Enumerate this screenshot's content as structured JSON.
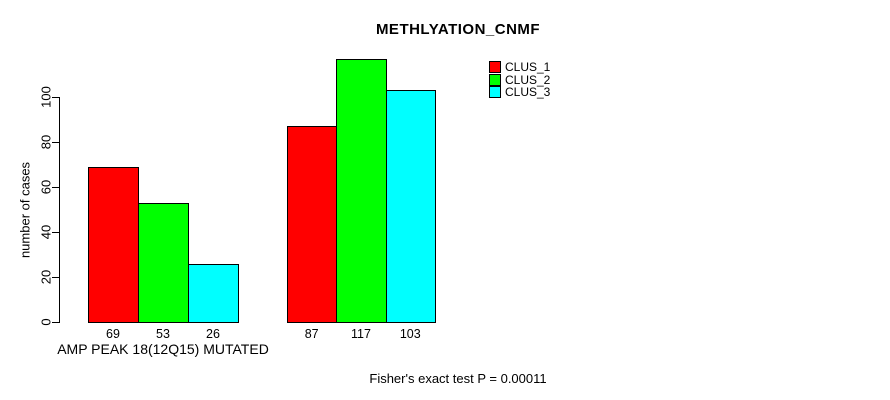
{
  "chart_data": {
    "type": "bar",
    "title": "METHLYATION_CNMF",
    "ylabel": "number of cases",
    "xlabel": "",
    "yticks": [
      0,
      20,
      40,
      60,
      80,
      100
    ],
    "ylim": [
      0,
      117
    ],
    "grid": false,
    "legend_position": "top-right",
    "series": [
      {
        "name": "CLUS_1",
        "color": "#ff0000"
      },
      {
        "name": "CLUS_2",
        "color": "#00ff00"
      },
      {
        "name": "CLUS_3",
        "color": "#00ffff"
      }
    ],
    "groups": [
      {
        "label": "AMP PEAK 18(12Q15) MUTATED",
        "values": [
          69,
          53,
          26
        ]
      },
      {
        "label": "",
        "values": [
          87,
          117,
          103
        ]
      }
    ],
    "bar_value_labels": [
      69,
      53,
      26,
      87,
      117,
      103
    ],
    "footer": "Fisher's exact test P = 0.00011"
  },
  "colors": {
    "background": "#ffffff",
    "axis": "#000000",
    "text": "#000000"
  }
}
